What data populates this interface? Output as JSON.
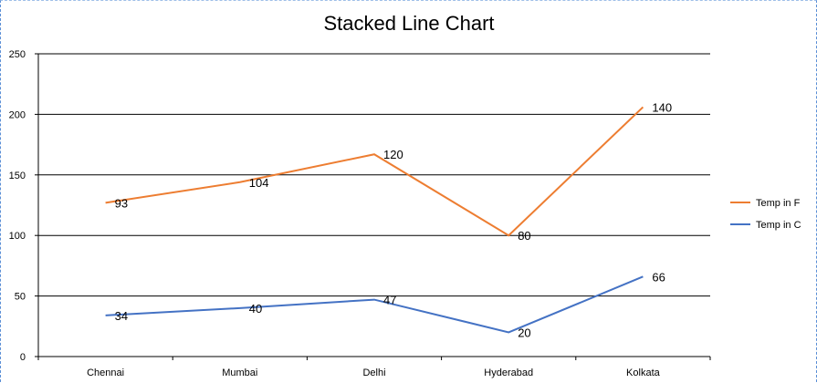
{
  "chart_data": {
    "type": "line",
    "stacked": true,
    "title": "Stacked Line Chart",
    "categories": [
      "Chennai",
      "Mumbai",
      "Delhi",
      "Hyderabad",
      "Kolkata"
    ],
    "series": [
      {
        "name": "Temp in F",
        "values": [
          93,
          104,
          120,
          80,
          140
        ],
        "color": "#ed7d31"
      },
      {
        "name": "Temp in C",
        "values": [
          34,
          40,
          47,
          20,
          66
        ],
        "color": "#4472c4"
      }
    ],
    "ylim": [
      0,
      250
    ],
    "yticks": [
      0,
      50,
      100,
      150,
      200,
      250
    ],
    "grid": true,
    "legend": "right"
  }
}
